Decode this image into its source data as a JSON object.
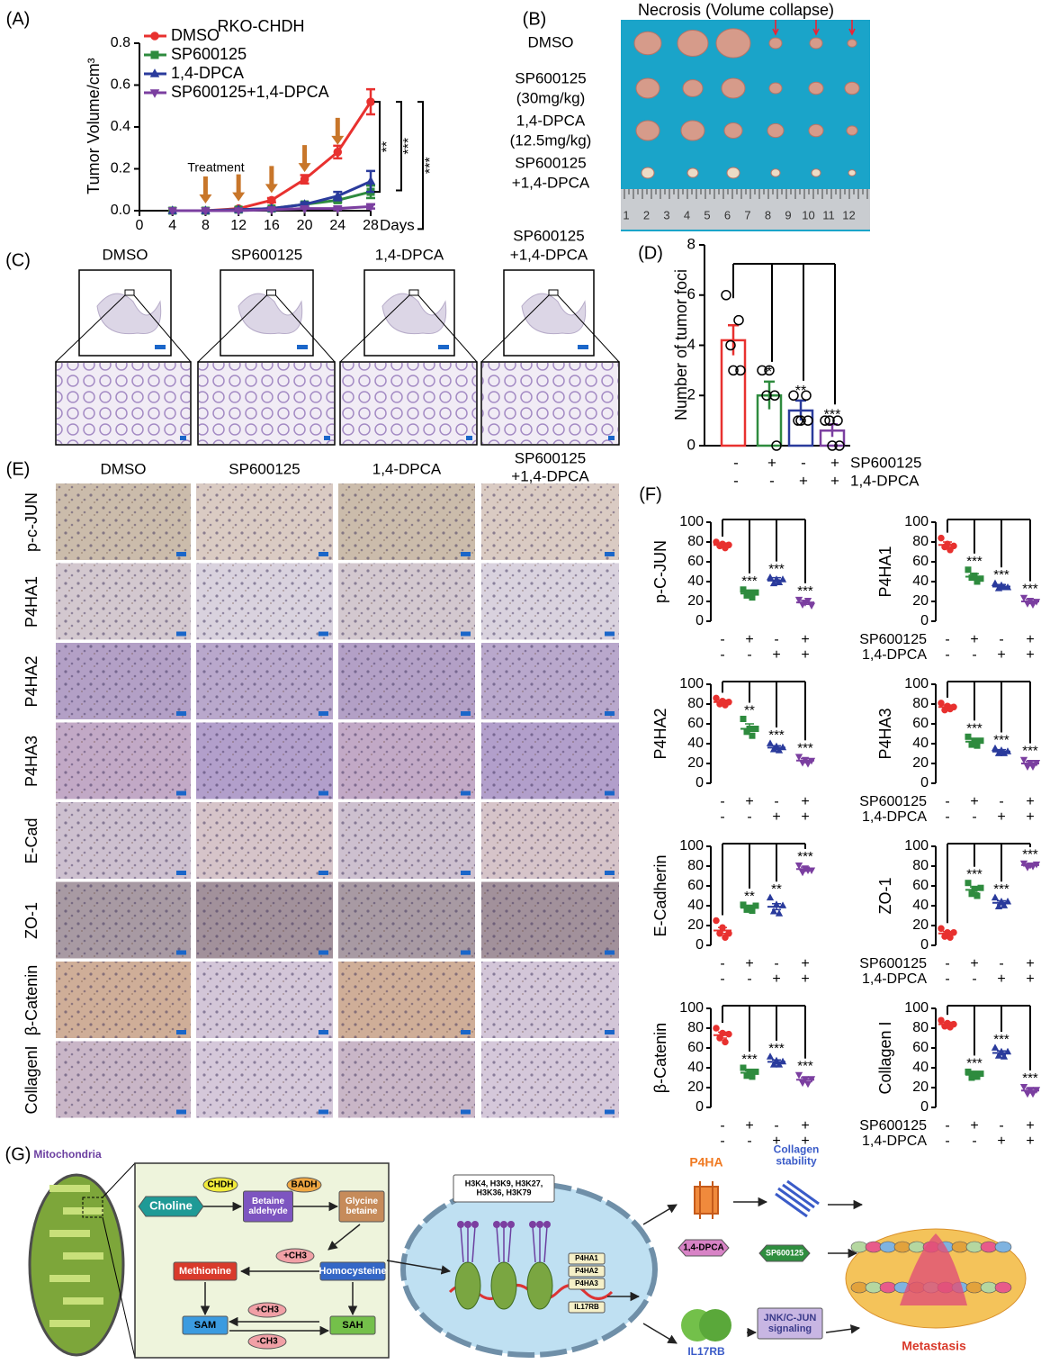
{
  "panel_labels": [
    "(A)",
    "(B)",
    "(C)",
    "(D)",
    "(E)",
    "(F)",
    "(G)"
  ],
  "panel_B": {
    "title": "Necrosis (Volume collapse)",
    "rows": [
      [
        "DMSO"
      ],
      [
        "SP600125",
        "(30mg/kg)"
      ],
      [
        "1,4-DPCA",
        "(12.5mg/kg)"
      ],
      [
        "SP600125",
        "+1,4-DPCA"
      ]
    ],
    "ruler": [
      1,
      2,
      3,
      4,
      5,
      6,
      7,
      8,
      9,
      10,
      11,
      12
    ]
  },
  "panel_C": {
    "columns": [
      [
        "DMSO"
      ],
      [
        "SP600125"
      ],
      [
        "1,4-DPCA"
      ],
      [
        "SP600125",
        "+1,4-DPCA"
      ]
    ]
  },
  "panel_E": {
    "columns": [
      [
        "DMSO"
      ],
      [
        "SP600125"
      ],
      [
        "1,4-DPCA"
      ],
      [
        "SP600125",
        "+1,4-DPCA"
      ]
    ],
    "rows": [
      "p-c-JUN",
      "P4HA1",
      "P4HA2",
      "P4HA3",
      "E-Cad",
      "ZO-1",
      "β-Catenin",
      "CollagenI"
    ]
  },
  "diagram": {
    "title": "Mitochondria",
    "nodes": [
      [
        "Choline"
      ],
      [
        "CHDH"
      ],
      [
        "Betaine",
        "aldehyde"
      ],
      [
        "BADH"
      ],
      [
        "Glycine",
        "betaine"
      ],
      [
        "+CH3"
      ],
      [
        "Methionine"
      ],
      [
        "Homocysteine"
      ],
      [
        "+CH3"
      ],
      [
        "-CH3"
      ],
      [
        "SAM"
      ],
      [
        "SAH"
      ],
      [
        "H3K4, H3K9, H3K27,",
        "H3K36, H3K79"
      ],
      [
        "P4HA1"
      ],
      [
        "P4HA2"
      ],
      [
        "P4HA3"
      ],
      [
        "IL17RB"
      ],
      [
        "P4HA"
      ],
      [
        "Collagen",
        "stability"
      ],
      [
        "1,4-DPCA"
      ],
      [
        "SP600125"
      ],
      [
        "IL17RB"
      ],
      [
        "JNK/C-JUN",
        "signaling"
      ],
      [
        "Metastasis"
      ]
    ]
  },
  "chart_data": [
    {
      "type": "line",
      "title": "RKO-CHDH",
      "ylabel": "Tumor Volume/cm³",
      "xlabel": "Days",
      "x": [
        4,
        8,
        12,
        16,
        20,
        24,
        28
      ],
      "series": [
        {
          "name": "DMSO",
          "color": "#e8312f",
          "values": [
            0,
            0,
            0.01,
            0.05,
            0.15,
            0.28,
            0.52
          ],
          "errors": [
            0,
            0,
            0.005,
            0.01,
            0.02,
            0.03,
            0.06
          ]
        },
        {
          "name": "SP600125",
          "color": "#2e8b3e",
          "values": [
            0,
            0,
            0.005,
            0.01,
            0.03,
            0.05,
            0.09
          ],
          "errors": [
            0,
            0,
            0,
            0.005,
            0.01,
            0.01,
            0.03
          ]
        },
        {
          "name": "1,4-DPCA",
          "color": "#2a3b9c",
          "values": [
            0,
            0,
            0.005,
            0.01,
            0.03,
            0.07,
            0.14
          ],
          "errors": [
            0,
            0,
            0,
            0.005,
            0.01,
            0.02,
            0.05
          ]
        },
        {
          "name": "SP600125+1,4-DPCA",
          "color": "#7b3fa0",
          "values": [
            0,
            0,
            0,
            0.005,
            0.01,
            0.01,
            0.02
          ],
          "errors": [
            0,
            0,
            0,
            0,
            0,
            0.005,
            0.01
          ]
        }
      ],
      "xlim": [
        0,
        28
      ],
      "xticks": [
        0,
        4,
        8,
        12,
        16,
        20,
        24,
        28
      ],
      "ylim": [
        0,
        0.8
      ],
      "yticks": [
        {
          "value": 0,
          "label": "0.0"
        },
        0.2,
        0.4,
        0.6,
        0.8
      ],
      "annotation": "Treatment",
      "treatment_days": [
        8,
        12,
        16,
        20,
        24
      ],
      "arrow_color": "#c8762a",
      "significance": [
        "**",
        "***",
        "***"
      ]
    },
    {
      "type": "bar",
      "ylabel": "Number of tumor foci",
      "values": [
        4.2,
        2.0,
        1.4,
        0.6
      ],
      "errors": [
        0.6,
        0.55,
        0.4,
        0.25
      ],
      "points": [
        [
          6,
          5,
          4,
          3,
          3
        ],
        [
          3,
          2,
          2,
          0,
          3
        ],
        [
          2,
          2,
          1,
          1,
          1
        ],
        [
          1,
          1,
          1,
          0,
          0
        ]
      ],
      "colors": [
        "#e8312f",
        "#2e8b3e",
        "#2a3b9c",
        "#7b3fa0"
      ],
      "ylim": [
        0,
        8
      ],
      "yticks": [
        0,
        2,
        4,
        6,
        8
      ],
      "significance": [
        "*",
        "**",
        "***"
      ],
      "signs": [
        [
          "-",
          "+",
          "-",
          "+"
        ],
        [
          "-",
          "-",
          "+",
          "+"
        ]
      ],
      "row_names": [
        "SP600125",
        "1,4-DPCA"
      ]
    },
    {
      "type": "dot",
      "ylabel": "p-C-JUN",
      "values": [
        77,
        28,
        41,
        19
      ],
      "errors": [
        2,
        3,
        3,
        2
      ],
      "points": [
        [
          80,
          76,
          78,
          74,
          77
        ],
        [
          32,
          26,
          29,
          24,
          29
        ],
        [
          44,
          38,
          42,
          39,
          42
        ],
        [
          22,
          17,
          19,
          21,
          16
        ]
      ],
      "colors": [
        "#e8312f",
        "#2e8b3e",
        "#2a3b9c",
        "#7b3fa0"
      ],
      "ylim": [
        0,
        100
      ],
      "yticks": [
        0,
        20,
        40,
        60,
        80,
        100
      ],
      "significance": [
        "***",
        "***",
        "***"
      ],
      "signs": [
        [
          "-",
          "+",
          "-",
          "+"
        ],
        [
          "-",
          "-",
          "+",
          "+"
        ]
      ]
    },
    {
      "type": "dot",
      "ylabel": "P4HA1",
      "values": [
        77,
        45,
        35,
        20
      ],
      "errors": [
        3,
        3,
        2,
        2
      ],
      "points": [
        [
          84,
          75,
          78,
          72,
          76
        ],
        [
          52,
          44,
          46,
          40,
          43
        ],
        [
          38,
          33,
          36,
          34,
          34
        ],
        [
          24,
          18,
          21,
          17,
          20
        ]
      ],
      "colors": [
        "#e8312f",
        "#2e8b3e",
        "#2a3b9c",
        "#7b3fa0"
      ],
      "ylim": [
        0,
        100
      ],
      "yticks": [
        0,
        20,
        40,
        60,
        80,
        100
      ],
      "significance": [
        "***",
        "***",
        "***"
      ],
      "signs": [
        [
          "-",
          "+",
          "-",
          "+"
        ],
        [
          "-",
          "-",
          "+",
          "+"
        ]
      ],
      "row_names": [
        "SP600125",
        "1,4-DPCA"
      ]
    },
    {
      "type": "dot",
      "ylabel": "P4HA2",
      "values": [
        82,
        55,
        36,
        23
      ],
      "errors": [
        2,
        5,
        2,
        2
      ],
      "points": [
        [
          86,
          80,
          83,
          79,
          82
        ],
        [
          65,
          52,
          55,
          48,
          55
        ],
        [
          40,
          34,
          37,
          33,
          36
        ],
        [
          27,
          21,
          24,
          20,
          23
        ]
      ],
      "colors": [
        "#e8312f",
        "#2e8b3e",
        "#2a3b9c",
        "#7b3fa0"
      ],
      "ylim": [
        0,
        100
      ],
      "yticks": [
        0,
        20,
        40,
        60,
        80,
        100
      ],
      "significance": [
        "**",
        "***",
        "***"
      ],
      "signs": [
        [
          "-",
          "+",
          "-",
          "+"
        ],
        [
          "-",
          "-",
          "+",
          "+"
        ]
      ]
    },
    {
      "type": "dot",
      "ylabel": "P4HA3",
      "values": [
        77,
        42,
        32,
        20
      ],
      "errors": [
        2,
        3,
        2,
        2
      ],
      "points": [
        [
          81,
          74,
          78,
          75,
          77
        ],
        [
          47,
          39,
          43,
          38,
          43
        ],
        [
          35,
          30,
          33,
          30,
          32
        ],
        [
          24,
          17,
          21,
          17,
          21
        ]
      ],
      "colors": [
        "#e8312f",
        "#2e8b3e",
        "#2a3b9c",
        "#7b3fa0"
      ],
      "ylim": [
        0,
        100
      ],
      "yticks": [
        0,
        20,
        40,
        60,
        80,
        100
      ],
      "significance": [
        "***",
        "***",
        "***"
      ],
      "signs": [
        [
          "-",
          "+",
          "-",
          "+"
        ],
        [
          "-",
          "-",
          "+",
          "+"
        ]
      ],
      "row_names": [
        "SP600125",
        "1,4-DPCA"
      ]
    },
    {
      "type": "dot",
      "ylabel": "E-Cadherin",
      "values": [
        15,
        38,
        39,
        77
      ],
      "errors": [
        3,
        2,
        3,
        2
      ],
      "points": [
        [
          25,
          12,
          18,
          8,
          12
        ],
        [
          41,
          36,
          38,
          35,
          40
        ],
        [
          48,
          34,
          41,
          32,
          40
        ],
        [
          81,
          74,
          78,
          76,
          76
        ]
      ],
      "colors": [
        "#e8312f",
        "#2e8b3e",
        "#2a3b9c",
        "#7b3fa0"
      ],
      "ylim": [
        0,
        100
      ],
      "yticks": [
        0,
        20,
        40,
        60,
        80,
        100
      ],
      "significance": [
        "**",
        "**",
        "***"
      ],
      "signs": [
        [
          "-",
          "+",
          "-",
          "+"
        ],
        [
          "-",
          "-",
          "+",
          "+"
        ]
      ]
    },
    {
      "type": "dot",
      "ylabel": "ZO-1",
      "values": [
        12,
        56,
        43,
        81
      ],
      "errors": [
        2,
        3,
        2,
        1
      ],
      "points": [
        [
          17,
          9,
          13,
          8,
          13
        ],
        [
          63,
          52,
          57,
          50,
          58
        ],
        [
          48,
          39,
          44,
          40,
          44
        ],
        [
          83,
          79,
          81,
          80,
          82
        ]
      ],
      "colors": [
        "#e8312f",
        "#2e8b3e",
        "#2a3b9c",
        "#7b3fa0"
      ],
      "ylim": [
        0,
        100
      ],
      "yticks": [
        0,
        20,
        40,
        60,
        80,
        100
      ],
      "significance": [
        "***",
        "***",
        "***"
      ],
      "signs": [
        [
          "-",
          "+",
          "-",
          "+"
        ],
        [
          "-",
          "-",
          "+",
          "+"
        ]
      ],
      "row_names": [
        "SP600125",
        "1,4-DPCA"
      ]
    },
    {
      "type": "dot",
      "ylabel": "β-Catenin",
      "values": [
        73,
        35,
        46,
        28
      ],
      "errors": [
        3,
        2,
        2,
        2
      ],
      "points": [
        [
          80,
          70,
          75,
          66,
          74
        ],
        [
          40,
          32,
          36,
          31,
          36
        ],
        [
          51,
          43,
          47,
          43,
          46
        ],
        [
          33,
          25,
          29,
          24,
          29
        ]
      ],
      "colors": [
        "#e8312f",
        "#2e8b3e",
        "#2a3b9c",
        "#7b3fa0"
      ],
      "ylim": [
        0,
        100
      ],
      "yticks": [
        0,
        20,
        40,
        60,
        80,
        100
      ],
      "significance": [
        "***",
        "***",
        "***"
      ],
      "signs": [
        [
          "-",
          "+",
          "-",
          "+"
        ],
        [
          "-",
          "-",
          "+",
          "+"
        ]
      ]
    },
    {
      "type": "dot",
      "ylabel": "Collagen I",
      "values": [
        84,
        33,
        55,
        17
      ],
      "errors": [
        2,
        2,
        2,
        2
      ],
      "points": [
        [
          88,
          82,
          85,
          81,
          84
        ],
        [
          36,
          30,
          34,
          31,
          34
        ],
        [
          60,
          52,
          56,
          51,
          56
        ],
        [
          21,
          14,
          18,
          14,
          18
        ]
      ],
      "colors": [
        "#e8312f",
        "#2e8b3e",
        "#2a3b9c",
        "#7b3fa0"
      ],
      "ylim": [
        0,
        100
      ],
      "yticks": [
        0,
        20,
        40,
        60,
        80,
        100
      ],
      "significance": [
        "***",
        "***",
        "***"
      ],
      "signs": [
        [
          "-",
          "+",
          "-",
          "+"
        ],
        [
          "-",
          "-",
          "+",
          "+"
        ]
      ],
      "row_names": [
        "SP600125",
        "1,4-DPCA"
      ]
    }
  ]
}
